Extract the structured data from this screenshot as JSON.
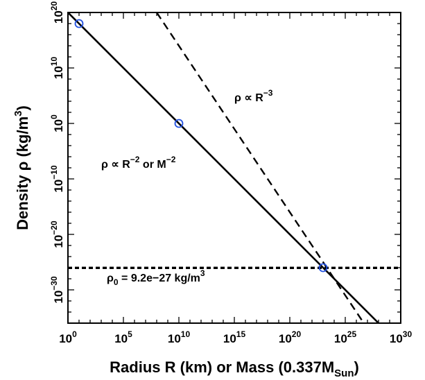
{
  "chart_data": {
    "type": "line",
    "xlabel": "Radius R (km) or Mass (0.337M",
    "xlabel_sub": "Sun",
    "xlabel_close": ")",
    "ylabel": "Density ρ (kg/m",
    "ylabel_sup": "3",
    "ylabel_close": ")",
    "xscale": "log",
    "yscale": "log",
    "xlim_log10": [
      0,
      30
    ],
    "ylim_log10": [
      -36,
      20
    ],
    "xticks": [
      {
        "log": 0,
        "base": "10",
        "exp": "0"
      },
      {
        "log": 5,
        "base": "10",
        "exp": "5"
      },
      {
        "log": 10,
        "base": "10",
        "exp": "10"
      },
      {
        "log": 15,
        "base": "10",
        "exp": "15"
      },
      {
        "log": 20,
        "base": "10",
        "exp": "20"
      },
      {
        "log": 25,
        "base": "10",
        "exp": "25"
      },
      {
        "log": 30,
        "base": "10",
        "exp": "30"
      }
    ],
    "yticks": [
      {
        "log": 20,
        "base": "10",
        "exp": "20"
      },
      {
        "log": 10,
        "base": "10",
        "exp": "10"
      },
      {
        "log": 0,
        "base": "10",
        "exp": "0"
      },
      {
        "log": -10,
        "base": "10",
        "exp": "−10"
      },
      {
        "log": -20,
        "base": "10",
        "exp": "−20"
      },
      {
        "log": -30,
        "base": "10",
        "exp": "−30"
      }
    ],
    "series": [
      {
        "style": "solid",
        "color": "#000000",
        "points_log10": [
          [
            0,
            20
          ],
          [
            28.0,
            -36
          ]
        ]
      },
      {
        "style": "dashed",
        "color": "#000000",
        "points_log10": [
          [
            8.0,
            20
          ],
          [
            26.67,
            -36
          ]
        ]
      },
      {
        "style": "dotted",
        "color": "#000000",
        "points_log10": [
          [
            0,
            -26.04
          ],
          [
            30,
            -26.04
          ]
        ]
      }
    ],
    "markers": {
      "color": "#1f4fe0",
      "points_log10": [
        [
          1.0,
          18.0
        ],
        [
          10.0,
          0.0
        ],
        [
          23.0,
          -26.0
        ]
      ]
    },
    "annotations": [
      {
        "id": "dashed-label",
        "pos_log10": [
          15,
          4
        ],
        "parts": [
          "ρ ∝ R",
          "−3",
          ""
        ]
      },
      {
        "id": "solid-label",
        "pos_log10": [
          3,
          -8
        ],
        "parts": [
          "ρ ∝ R",
          "−2",
          "  or  M",
          "−2",
          ""
        ]
      },
      {
        "id": "rho0-label",
        "pos_log10": [
          3.5,
          -28.5
        ],
        "rho": "ρ",
        "rho_sub": "0",
        "rest": " = 9.2e−27  kg/m",
        "rest_sup": "3"
      }
    ]
  }
}
